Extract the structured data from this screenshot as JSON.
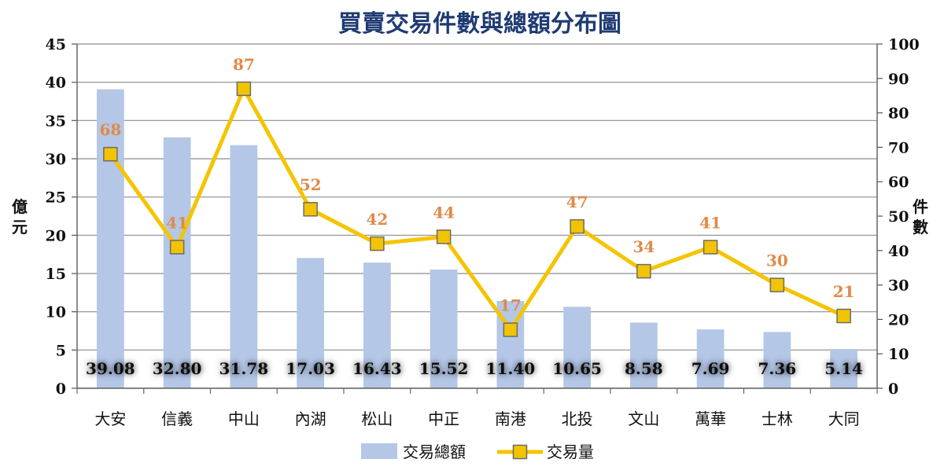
{
  "chart_data": {
    "type": "bar",
    "title": "買賣交易件數與總額分布圖",
    "categories": [
      "大安",
      "信義",
      "中山",
      "內湖",
      "松山",
      "中正",
      "南港",
      "北投",
      "文山",
      "萬華",
      "士林",
      "大同"
    ],
    "series": [
      {
        "name": "交易總額",
        "type": "bar",
        "axis": "left",
        "color": "#b4c7e7",
        "values": [
          39.08,
          32.8,
          31.78,
          17.03,
          16.43,
          15.52,
          11.4,
          10.65,
          8.58,
          7.69,
          7.36,
          5.14
        ],
        "labels": [
          "39.08",
          "32.80",
          "31.78",
          "17.03",
          "16.43",
          "15.52",
          "11.40",
          "10.65",
          "8.58",
          "7.69",
          "7.36",
          "5.14"
        ]
      },
      {
        "name": "交易量",
        "type": "line",
        "axis": "right",
        "color": "#f5c400",
        "marker_color": "#f2c400",
        "values": [
          68,
          41,
          87,
          52,
          42,
          44,
          17,
          47,
          34,
          41,
          30,
          21
        ],
        "labels": [
          "68",
          "41",
          "87",
          "52",
          "42",
          "44",
          "17",
          "47",
          "34",
          "41",
          "30",
          "21"
        ]
      }
    ],
    "ylabel": "億元",
    "y2label": "件數",
    "ylim": [
      0,
      45
    ],
    "y2lim": [
      0,
      100
    ],
    "yticks": [
      "0",
      "5",
      "10",
      "15",
      "20",
      "25",
      "30",
      "35",
      "40",
      "45"
    ],
    "y2ticks": [
      "0",
      "10",
      "20",
      "30",
      "40",
      "50",
      "60",
      "70",
      "80",
      "90",
      "100"
    ],
    "grid": true,
    "legend_position": "bottom-center",
    "label_color": "#e08a4a"
  }
}
